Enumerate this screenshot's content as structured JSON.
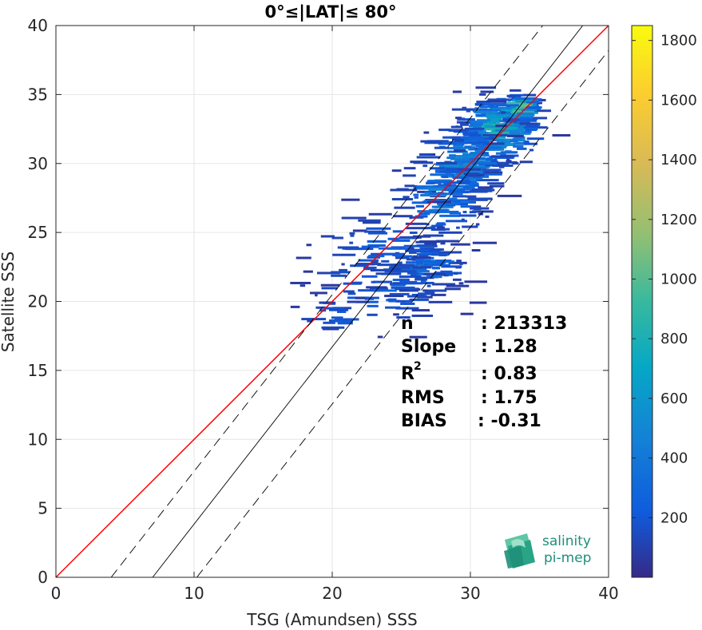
{
  "chart_data": {
    "type": "heatmap",
    "title": "0°≤|LAT|≤ 80°",
    "xlabel": "TSG (Amundsen) SSS",
    "ylabel": "Satellite SSS",
    "xlim": [
      0,
      40
    ],
    "ylim": [
      0,
      40
    ],
    "xticks": [
      0,
      10,
      20,
      30,
      40
    ],
    "yticks": [
      0,
      5,
      10,
      15,
      20,
      25,
      30,
      35,
      40
    ],
    "grid": true,
    "colorbar": {
      "range": [
        0,
        1850
      ],
      "ticks": [
        200,
        400,
        600,
        800,
        1000,
        1200,
        1400,
        1600,
        1800
      ],
      "colormap": "parula"
    },
    "reference_lines": [
      {
        "name": "1:1",
        "color": "#ff0000",
        "style": "solid",
        "points": [
          [
            0,
            0
          ],
          [
            40,
            40
          ]
        ]
      },
      {
        "name": "fit",
        "color": "#000000",
        "style": "solid",
        "points": [
          [
            7,
            0
          ],
          [
            40,
            42.4
          ]
        ]
      },
      {
        "name": "fit-upper",
        "color": "#000000",
        "style": "dashed",
        "points": [
          [
            4,
            0
          ],
          [
            40,
            46.1
          ]
        ]
      },
      {
        "name": "fit-lower",
        "color": "#000000",
        "style": "dashed",
        "points": [
          [
            10.2,
            0
          ],
          [
            40,
            38.2
          ]
        ]
      }
    ],
    "density_clusters": [
      {
        "x": 32.0,
        "y": 32.5,
        "sx": 1.4,
        "sy": 1.2,
        "n": 260,
        "level": 0.35
      },
      {
        "x": 33.6,
        "y": 34.0,
        "sx": 0.6,
        "sy": 0.5,
        "n": 90,
        "level": 0.5
      },
      {
        "x": 29.5,
        "y": 30.0,
        "sx": 1.4,
        "sy": 1.4,
        "n": 170,
        "level": 0.25
      },
      {
        "x": 28.0,
        "y": 27.5,
        "sx": 1.5,
        "sy": 1.5,
        "n": 120,
        "level": 0.2
      },
      {
        "x": 27.0,
        "y": 22.5,
        "sx": 1.3,
        "sy": 1.0,
        "n": 110,
        "level": 0.15
      },
      {
        "x": 23.5,
        "y": 21.0,
        "sx": 2.6,
        "sy": 1.5,
        "n": 80,
        "level": 0.1
      },
      {
        "x": 24.0,
        "y": 24.0,
        "sx": 2.3,
        "sy": 1.4,
        "n": 50,
        "level": 0.1
      },
      {
        "x": 20.5,
        "y": 18.8,
        "sx": 1.6,
        "sy": 0.8,
        "n": 22,
        "level": 0.08
      }
    ],
    "stats": [
      {
        "label": "n",
        "value": ": 213313"
      },
      {
        "label": "Slope",
        "value": ": 1.28"
      },
      {
        "label": "R",
        "sup": "2",
        "value": ": 0.83"
      },
      {
        "label": "RMS",
        "value": ": 1.75"
      },
      {
        "label": "BIAS",
        "value": ": -0.31"
      }
    ]
  },
  "logo": {
    "line1": "salinity",
    "line2": "pi-mep"
  }
}
